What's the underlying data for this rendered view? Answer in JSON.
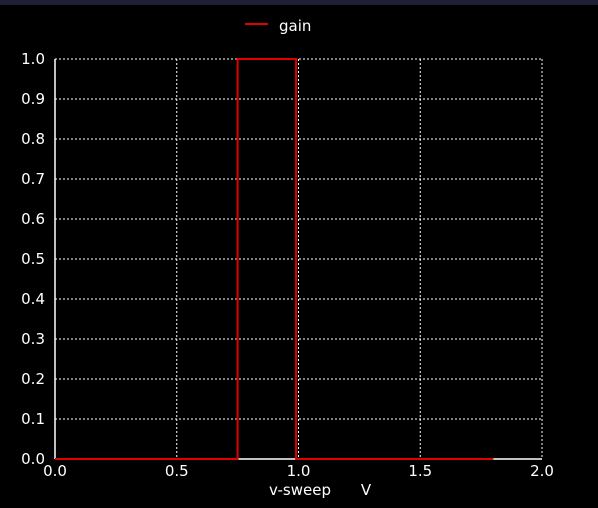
{
  "chart_data": {
    "type": "line",
    "title": "",
    "xlabel": "v-sweep",
    "xunit": "V",
    "ylabel": "",
    "xlim": [
      0.0,
      2.0
    ],
    "ylim": [
      0.0,
      1.0
    ],
    "xticks": [
      0.0,
      0.5,
      1.0,
      1.5,
      2.0
    ],
    "xtick_labels": [
      "0.0",
      "0.5",
      "1.0",
      "1.5",
      "2.0"
    ],
    "yticks": [
      0.0,
      0.1,
      0.2,
      0.3,
      0.4,
      0.5,
      0.6,
      0.7,
      0.8,
      0.9,
      1.0
    ],
    "ytick_labels": [
      "0.0",
      "0.1",
      "0.2",
      "0.3",
      "0.4",
      "0.5",
      "0.6",
      "0.7",
      "0.8",
      "0.9",
      "1.0"
    ],
    "grid": true,
    "legend_position": "top-center",
    "background_color": "#000000",
    "axis_color": "#ffffff",
    "grid_color": "#ffffff",
    "series": [
      {
        "name": "gain",
        "color": "#e00000",
        "x": [
          0.0,
          0.75,
          0.75,
          0.99,
          0.99,
          1.8
        ],
        "y": [
          0.0,
          0.0,
          1.0,
          1.0,
          0.0,
          0.0
        ]
      }
    ]
  }
}
